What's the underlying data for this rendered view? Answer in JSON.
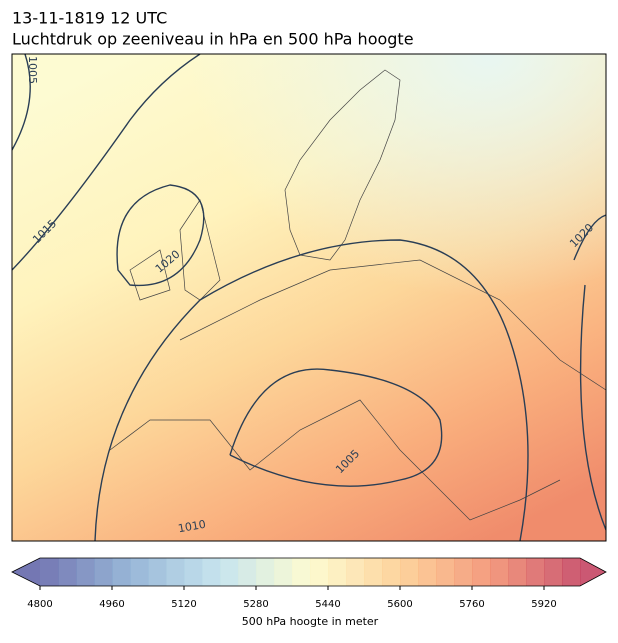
{
  "title": "13-11-1819 12 UTC",
  "subtitle": "Luchtdruk op zeeniveau in hPa en 500 hPa hoogte",
  "map": {
    "contour_labels": [
      "1005",
      "1015",
      "1020",
      "1020",
      "1005",
      "1010"
    ]
  },
  "colorbar": {
    "label": "500 hPa hoogte in meter",
    "lim": [
      4800,
      6000
    ],
    "ticks": [
      4800,
      4960,
      5120,
      5280,
      5440,
      5600,
      5760,
      5920
    ],
    "colormap": [
      "#5c5fa6",
      "#86aad0",
      "#bde0ec",
      "#fdfbc9",
      "#fdcb8c",
      "#f28b68",
      "#c23b5a"
    ]
  }
}
